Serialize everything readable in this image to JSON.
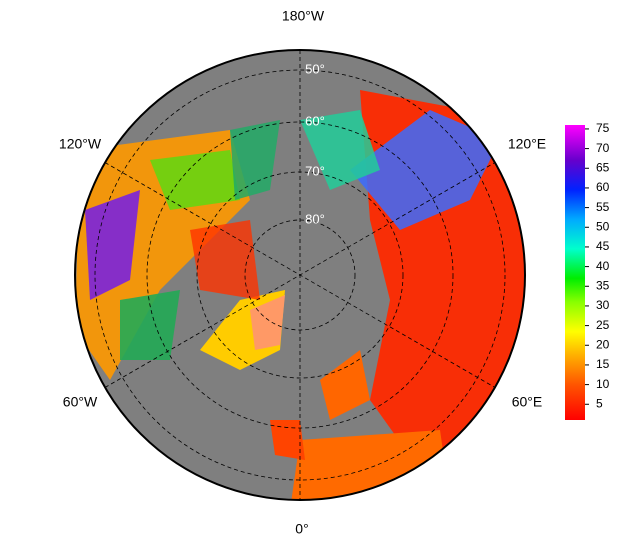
{
  "map": {
    "lon_labels": [
      "180°W",
      "120°E",
      "60°E",
      "0°",
      "60°W",
      "120°W"
    ],
    "lat_labels": [
      "50°",
      "60°",
      "70°",
      "80°"
    ],
    "lat_values": [
      50,
      60,
      70,
      80
    ],
    "colorbar": {
      "range": [
        1,
        76
      ],
      "ticks": [
        5,
        10,
        15,
        20,
        25,
        30,
        35,
        40,
        45,
        50,
        55,
        60,
        65,
        70,
        75
      ]
    }
  }
}
